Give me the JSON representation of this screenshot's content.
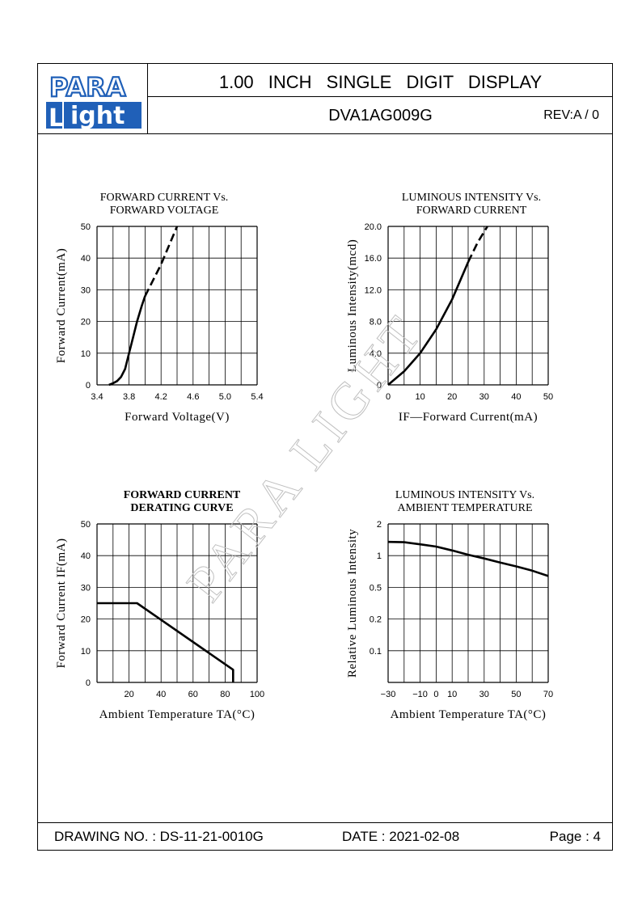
{
  "header": {
    "logo_top": "PARA",
    "logo_bottom_l": "L",
    "logo_bottom_rest": "ight",
    "title": "1.00 INCH SINGLE DIGIT DISPLAY",
    "part_number": "DVA1AG009G",
    "revision": "REV:A / 0"
  },
  "footer": {
    "drawing_no": "DRAWING NO. : DS-11-21-0010G",
    "date": "DATE : 2021-02-08",
    "page": "Page : 4"
  },
  "watermark": "PARA LIGHT",
  "colors": {
    "ink": "#000000",
    "logo_blue": "#2060b8",
    "watermark": "#c0c0c0"
  },
  "chart_data": [
    {
      "id": "fc_vs_fv",
      "type": "line",
      "title": [
        "FORWARD CURRENT Vs.",
        "FORWARD VOLTAGE"
      ],
      "xlabel": "Forward Voltage(V)",
      "ylabel": "Forward Current(mA)",
      "xlim": [
        3.4,
        5.4
      ],
      "ylim": [
        0,
        50
      ],
      "x_ticks": [
        "3.4",
        "3.8",
        "4.2",
        "4.6",
        "5.0",
        "5.4"
      ],
      "y_ticks": [
        "0",
        "10",
        "20",
        "30",
        "40",
        "50"
      ],
      "grid": true,
      "series": [
        {
          "style": "solid",
          "x": [
            3.55,
            3.6,
            3.65,
            3.7,
            3.75,
            3.8,
            3.85,
            3.9,
            3.96,
            4.0
          ],
          "y": [
            0,
            0.5,
            1.2,
            2.5,
            5,
            10,
            15,
            20,
            25,
            28
          ]
        },
        {
          "style": "dashed",
          "x": [
            4.0,
            4.1,
            4.2,
            4.3,
            4.4
          ],
          "y": [
            28,
            33,
            38,
            44,
            50
          ]
        }
      ]
    },
    {
      "id": "li_vs_fc",
      "type": "line",
      "title": [
        "LUMINOUS INTENSITY Vs.",
        "FORWARD CURRENT"
      ],
      "xlabel": "IF—Forward Current(mA)",
      "ylabel": "Luminous Intensity(mcd)",
      "xlim": [
        0,
        50
      ],
      "ylim": [
        0,
        20
      ],
      "x_ticks": [
        "0",
        "10",
        "20",
        "30",
        "40",
        "50"
      ],
      "y_ticks": [
        "0",
        "4.0",
        "8.0",
        "12.0",
        "16.0",
        "20.0"
      ],
      "grid": true,
      "series": [
        {
          "style": "solid",
          "x": [
            0,
            5,
            10,
            15,
            20,
            25
          ],
          "y": [
            0,
            1.7,
            4.0,
            7.0,
            10.8,
            15.5
          ]
        },
        {
          "style": "dashed",
          "x": [
            25,
            28,
            31
          ],
          "y": [
            15.5,
            18,
            20
          ]
        }
      ]
    },
    {
      "id": "derating",
      "type": "line",
      "title": [
        "FORWARD CURRENT",
        "DERATING CURVE"
      ],
      "xlabel": "Ambient Temperature TA(°C)",
      "ylabel": "Forward Current IF(mA)",
      "xlim": [
        0,
        100
      ],
      "ylim": [
        0,
        50
      ],
      "x_ticks": [
        "20",
        "40",
        "60",
        "80",
        "100"
      ],
      "y_ticks": [
        "0",
        "10",
        "20",
        "30",
        "40",
        "50"
      ],
      "grid": true,
      "series": [
        {
          "style": "solid",
          "x": [
            0,
            25,
            85,
            85
          ],
          "y": [
            25,
            25,
            4,
            0
          ]
        }
      ]
    },
    {
      "id": "li_vs_temp",
      "type": "line",
      "title": [
        "LUMINOUS INTENSITY Vs.",
        "AMBIENT TEMPERATURE"
      ],
      "xlabel": "Ambient Temperature TA(°C)",
      "ylabel": "Relative Luminous Intensity",
      "xlim": [
        -30,
        70
      ],
      "y_scale": "log",
      "ylim_text": [
        "0.1",
        "2"
      ],
      "x_ticks": [
        "-30",
        "-10",
        "0",
        "10",
        "30",
        "50",
        "70"
      ],
      "y_ticks": [
        "0.1",
        "0.2",
        "0.5",
        "1",
        "2"
      ],
      "grid": true,
      "series": [
        {
          "style": "solid",
          "x": [
            -30,
            -20,
            -10,
            0,
            10,
            20,
            30,
            40,
            50,
            60,
            70
          ],
          "y": [
            1.35,
            1.34,
            1.28,
            1.22,
            1.12,
            1.02,
            0.94,
            0.86,
            0.79,
            0.72,
            0.64
          ]
        }
      ]
    }
  ]
}
